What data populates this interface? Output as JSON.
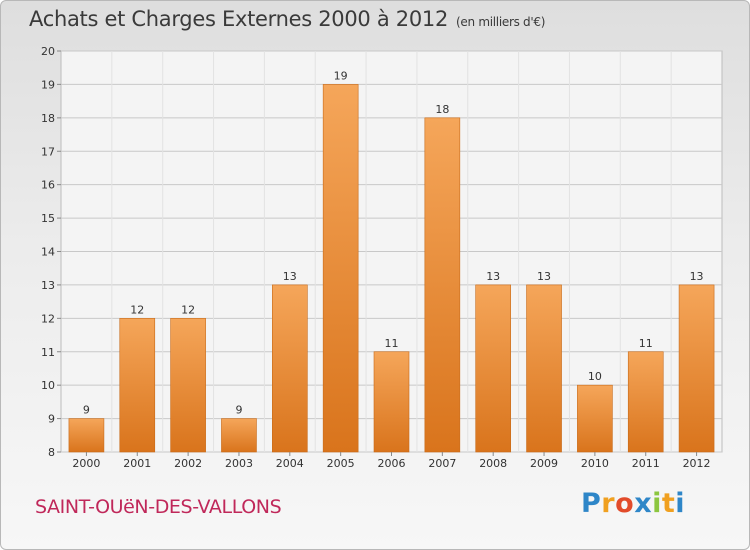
{
  "header": {
    "title": "Achats et Charges Externes 2000 à 2012",
    "unit": "(en milliers d'€)"
  },
  "commune": "SAINT-OUëN-DES-VALLONS",
  "logo": {
    "text": "Proxiti",
    "letters": [
      {
        "ch": "P",
        "color": "#2e86c8"
      },
      {
        "ch": "r",
        "color": "#f0a020"
      },
      {
        "ch": "o",
        "color": "#e24b2a"
      },
      {
        "ch": "x",
        "color": "#2e86c8"
      },
      {
        "ch": "i",
        "color": "#8cc63f"
      },
      {
        "ch": "t",
        "color": "#f0a020"
      },
      {
        "ch": "i",
        "color": "#2e86c8"
      }
    ]
  },
  "colors": {
    "bar_light": "#f5a65a",
    "bar_dark": "#d9741c",
    "grid": "#c8c8c8",
    "axis_text": "#333333"
  },
  "chart_data": {
    "type": "bar",
    "title": "Achats et Charges Externes 2000 à 2012",
    "subtitle": "(en milliers d'€)",
    "categories": [
      "2000",
      "2001",
      "2002",
      "2003",
      "2004",
      "2005",
      "2006",
      "2007",
      "2008",
      "2009",
      "2010",
      "2011",
      "2012"
    ],
    "values": [
      9,
      12,
      12,
      9,
      13,
      19,
      11,
      18,
      13,
      13,
      10,
      11,
      13
    ],
    "ylim": [
      8,
      20
    ],
    "yticks": [
      8,
      9,
      10,
      11,
      12,
      13,
      14,
      15,
      16,
      17,
      18,
      19,
      20
    ],
    "xlabel": "",
    "ylabel": "",
    "grid": true
  }
}
